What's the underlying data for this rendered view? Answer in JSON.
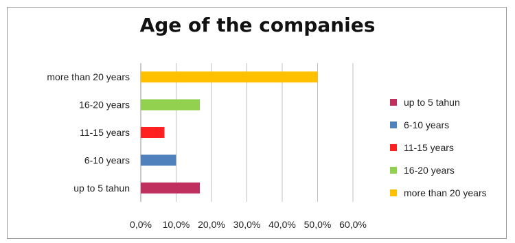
{
  "chart_data": {
    "type": "bar",
    "orientation": "horizontal",
    "title": "Age of the companies",
    "categories": [
      "more than 20 years",
      "16-20 years",
      "11-15 years",
      "6-10 years",
      "up to 5 tahun"
    ],
    "values": [
      50.0,
      16.7,
      6.7,
      10.0,
      16.7
    ],
    "colors": [
      "#FFC000",
      "#92D050",
      "#FF2020",
      "#4F81BD",
      "#C0305F"
    ],
    "xticks": [
      "0,0%",
      "10,0%",
      "20,0%",
      "30,0%",
      "40,0%",
      "50,0%",
      "60,0%"
    ],
    "xlim": [
      0,
      60
    ],
    "grid": true,
    "legend": {
      "position": "right",
      "items": [
        {
          "label": "up to 5 tahun",
          "color": "#C0305F"
        },
        {
          "label": "6-10 years",
          "color": "#4F81BD"
        },
        {
          "label": "11-15 years",
          "color": "#FF2020"
        },
        {
          "label": "16-20 years",
          "color": "#92D050"
        },
        {
          "label": "more than 20 years",
          "color": "#FFC000"
        }
      ]
    }
  }
}
